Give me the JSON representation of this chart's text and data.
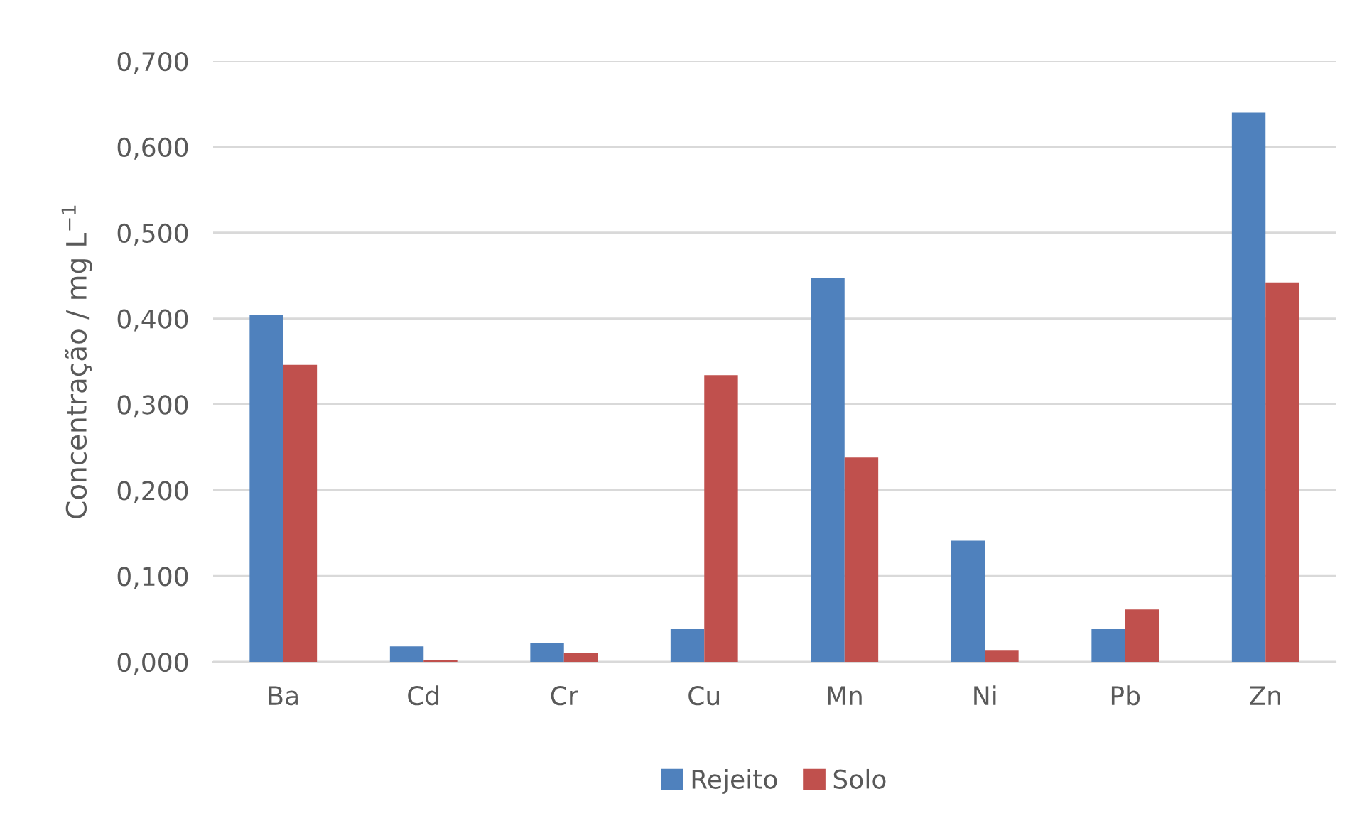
{
  "chart_data": {
    "type": "bar",
    "ylabel": "Concentração / mg L$^{−1}$",
    "categories": [
      "Ba",
      "Cd",
      "Cr",
      "Cu",
      "Mn",
      "Ni",
      "Pb",
      "Zn"
    ],
    "series": [
      {
        "name": "Rejeito",
        "color": "#4f81bd",
        "values": [
          0.404,
          0.018,
          0.022,
          0.038,
          0.447,
          0.141,
          0.038,
          0.64
        ]
      },
      {
        "name": "Solo",
        "color": "#c0504d",
        "values": [
          0.346,
          0.002,
          0.01,
          0.334,
          0.238,
          0.013,
          0.061,
          0.442
        ]
      }
    ],
    "ylim": [
      0,
      0.7
    ],
    "yticks": [
      {
        "value": 0,
        "label": "0,000"
      },
      {
        "value": 0.1,
        "label": "0,100"
      },
      {
        "value": 0.2,
        "label": "0,200"
      },
      {
        "value": 0.3,
        "label": "0,300"
      },
      {
        "value": 0.4,
        "label": "0,400"
      },
      {
        "value": 0.5,
        "label": "0,500"
      },
      {
        "value": 0.6,
        "label": "0,600"
      },
      {
        "value": 0.7,
        "label": "0,700"
      }
    ],
    "grid": "y",
    "legend": "bottom"
  }
}
